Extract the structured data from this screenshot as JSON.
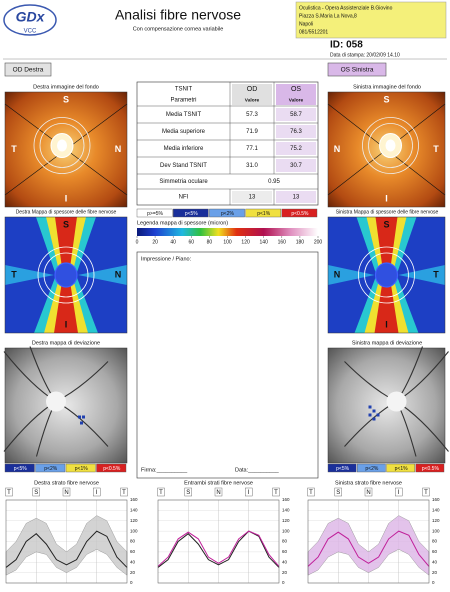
{
  "header": {
    "logo": "GDx",
    "logo_sub": "VCC",
    "title": "Analisi fibre nervose",
    "subtitle": "Con compensazione cornea variabile",
    "address": [
      "Oculistica - Opera Assistenziale B.Giovino",
      "Piazza S.Maria La Nova,8",
      "Napoli",
      "081/5512201"
    ],
    "id": "ID: 058",
    "print_date": "Data di stampa: 20/02/09 14.10"
  },
  "eyes": {
    "od": "OD  Destra",
    "os": "OS  Sinistra"
  },
  "od": {
    "fundus_title": "Destra immagine del fondo",
    "thickness_title": "Destra Mappa di spessore delle fibre nervose",
    "deviation_title": "Destra mappa di deviazione"
  },
  "os": {
    "fundus_title": "Sinistra immagine del fondo",
    "thickness_title": "Sinistra Mappa di spessore delle fibre nervose",
    "deviation_title": "Sinistra mappa di deviazione"
  },
  "sectors": {
    "S": "S",
    "T": "T",
    "N": "N",
    "I": "I"
  },
  "table": {
    "header": [
      "TSNIT",
      "OD",
      "OS"
    ],
    "subheader": [
      "Parametri",
      "Valore",
      "Valore"
    ],
    "rows": [
      [
        "Media TSNIT",
        "57.3",
        "58.7"
      ],
      [
        "Media superiore",
        "71.9",
        "76.3"
      ],
      [
        "Media inferiore",
        "77.1",
        "75.2"
      ],
      [
        "Dev Stand TSNIT",
        "31.0",
        "30.7"
      ]
    ],
    "symmetry": {
      "label": "Simmetria oculare",
      "value": "0.95"
    },
    "nfi": [
      "NFI",
      "13",
      "13"
    ]
  },
  "p_legend": [
    "p>=5%",
    "p<5%",
    "p<2%",
    "p<1%",
    "p<0.5%"
  ],
  "thickness_legend": {
    "title": "Legenda mappa di spessore (micron)",
    "ticks": [
      0,
      20,
      40,
      60,
      80,
      100,
      120,
      140,
      160,
      180,
      200
    ]
  },
  "impression": {
    "label": "Impressione / Piano:",
    "signature": "Firma:__________",
    "date": "Data:__________"
  },
  "chart_data": [
    {
      "type": "line",
      "title": "Destra strato fibre nervose",
      "sector_labels": [
        "T",
        "S",
        "N",
        "I",
        "T"
      ],
      "ylim": [
        0,
        160
      ],
      "yticks": [
        0,
        20,
        40,
        60,
        80,
        100,
        120,
        140,
        160
      ],
      "band": {
        "color": "#c8c8c8",
        "lower": [
          15,
          25,
          50,
          60,
          55,
          30,
          20,
          30,
          55,
          65,
          55,
          30,
          15
        ],
        "upper": [
          60,
          80,
          115,
          125,
          115,
          75,
          60,
          75,
          115,
          130,
          120,
          80,
          60
        ]
      },
      "series": [
        {
          "color": "#222222",
          "values": [
            30,
            45,
            80,
            95,
            75,
            45,
            35,
            45,
            80,
            100,
            90,
            50,
            30
          ]
        }
      ]
    },
    {
      "type": "line",
      "title": "Entrambi strati fibre nervose",
      "sector_labels": [
        "T",
        "S",
        "N",
        "I",
        "T"
      ],
      "ylim": [
        0,
        160
      ],
      "yticks": [
        0,
        20,
        40,
        60,
        80,
        100,
        120,
        140,
        160
      ],
      "series": [
        {
          "color": "#222222",
          "values": [
            30,
            45,
            80,
            95,
            75,
            45,
            35,
            45,
            80,
            100,
            90,
            50,
            30
          ]
        },
        {
          "color": "#c0209a",
          "values": [
            32,
            50,
            85,
            98,
            85,
            50,
            38,
            50,
            85,
            100,
            92,
            55,
            32
          ]
        }
      ]
    },
    {
      "type": "line",
      "title": "Sinistra strato fibre nervose",
      "sector_labels": [
        "T",
        "S",
        "N",
        "I",
        "T"
      ],
      "ylim": [
        0,
        160
      ],
      "yticks": [
        0,
        20,
        40,
        60,
        80,
        100,
        120,
        140,
        160
      ],
      "band": {
        "color": "#dcb4e6",
        "lower": [
          15,
          25,
          50,
          60,
          55,
          30,
          20,
          30,
          55,
          65,
          55,
          30,
          15
        ],
        "upper": [
          60,
          80,
          115,
          125,
          115,
          75,
          60,
          75,
          115,
          130,
          120,
          80,
          60
        ]
      },
      "series": [
        {
          "color": "#c0209a",
          "values": [
            32,
            50,
            85,
            98,
            85,
            50,
            38,
            50,
            85,
            100,
            92,
            55,
            32
          ]
        }
      ]
    }
  ]
}
